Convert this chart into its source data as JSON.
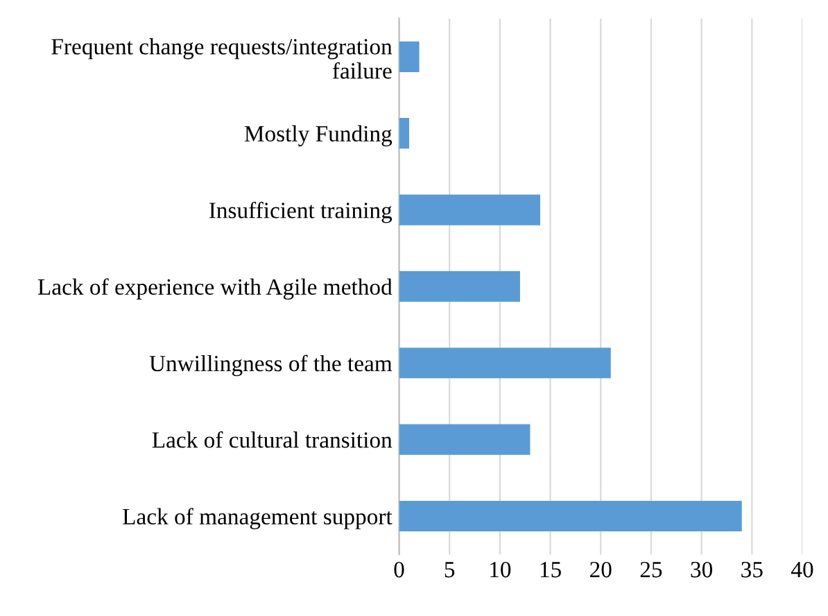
{
  "chart_data": {
    "type": "bar",
    "orientation": "horizontal",
    "categories": [
      "Frequent change requests/integration\nfailure",
      "Mostly Funding",
      "Insufficient training",
      "Lack of experience with Agile method",
      "Unwillingness of the team",
      "Lack of cultural transition",
      "Lack of management support"
    ],
    "values": [
      2,
      1,
      14,
      12,
      21,
      13,
      34
    ],
    "color": "#5b9bd5",
    "xlim": [
      0,
      40
    ],
    "xticks": [
      0,
      5,
      10,
      15,
      20,
      25,
      30,
      35,
      40
    ],
    "grid": "x"
  }
}
